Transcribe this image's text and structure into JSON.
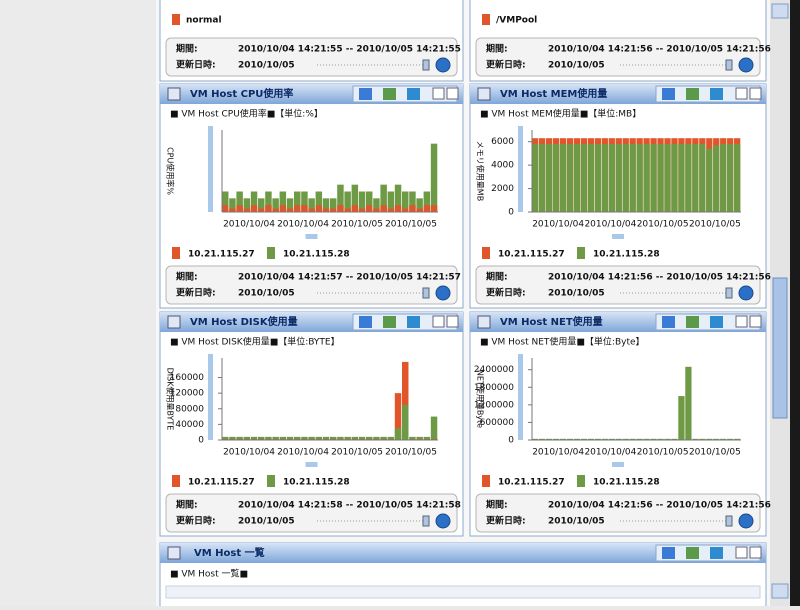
{
  "top_panels": [
    {
      "status": "normal",
      "period_label": "期間:",
      "period": "2010/10/04 14:21:55 -- 2010/10/05 14:21:55",
      "updated_label": "更新日時:",
      "updated": "2010/10/05"
    },
    {
      "status": "/VMPool",
      "period_label": "期間:",
      "period": "2010/10/04 14:21:56 -- 2010/10/05 14:21:56",
      "updated_label": "更新日時:",
      "updated": "2010/10/05"
    }
  ],
  "chart_panels": [
    {
      "title": "VM Host CPU使用率",
      "subtitle": "■ VM Host CPU使用率■【単位:%】",
      "chart": {
        "type": "area",
        "y_label": "CPU使用率%",
        "ylim": [
          0,
          12
        ],
        "x_labels": [
          "2010/10/04",
          "2010/10/04",
          "2010/10/05",
          "2010/10/05"
        ],
        "series": [
          {
            "name": "10.21.115.27",
            "color": "#e0552a",
            "values": [
              1,
              0.5,
              1,
              0.5,
              1,
              0.5,
              1,
              0.5,
              1,
              0.5,
              1,
              1,
              0.5,
              1,
              0.5,
              0.5,
              1,
              0.5,
              1,
              0.5,
              1,
              0.5,
              1,
              0.5,
              1,
              0.5,
              1,
              0.5,
              1,
              1
            ]
          },
          {
            "name": "10.21.115.28",
            "color": "#6f9a45",
            "values": [
              3,
              2,
              3,
              2,
              3,
              2,
              3,
              2,
              3,
              2,
              3,
              3,
              2,
              3,
              2,
              2,
              4,
              3,
              4,
              3,
              3,
              2,
              4,
              3,
              4,
              3,
              3,
              2,
              3,
              10
            ]
          }
        ]
      },
      "period_label": "期間:",
      "period": "2010/10/04 14:21:57 -- 2010/10/05 14:21:57",
      "updated_label": "更新日時:",
      "updated": "2010/10/05"
    },
    {
      "title": "VM Host MEM使用量",
      "subtitle": "■ VM Host MEM使用量■【単位:MB】",
      "chart": {
        "type": "area",
        "y_label": "メモリ使用量MB",
        "ylim": [
          0,
          7000
        ],
        "yticks": [
          0,
          2000,
          4000,
          6000
        ],
        "x_labels": [
          "2010/10/04",
          "2010/10/04",
          "2010/10/05",
          "2010/10/05"
        ],
        "series": [
          {
            "name": "10.21.115.27",
            "color": "#e0552a",
            "values": [
              6300,
              6300,
              6300,
              6300,
              6300,
              6300,
              6300,
              6300,
              6300,
              6300,
              6300,
              6300,
              6300,
              6300,
              6300,
              6300,
              6300,
              6300,
              6300,
              6300,
              6300,
              6300,
              6300,
              6300,
              6300,
              6300,
              6300,
              6300,
              6300,
              6300
            ]
          },
          {
            "name": "10.21.115.28",
            "color": "#6f9a45",
            "values": [
              5800,
              5800,
              5800,
              5800,
              5800,
              5800,
              5800,
              5800,
              5800,
              5800,
              5800,
              5800,
              5800,
              5800,
              5800,
              5800,
              5800,
              5800,
              5800,
              5800,
              5800,
              5800,
              5800,
              5800,
              5800,
              5400,
              5700,
              5800,
              5800,
              5800
            ]
          }
        ]
      },
      "period_label": "期間:",
      "period": "2010/10/04 14:21:56 -- 2010/10/05 14:21:56",
      "updated_label": "更新日時:",
      "updated": "2010/10/05"
    },
    {
      "title": "VM Host DISK使用量",
      "subtitle": "■ VM Host DISK使用量■【単位:BYTE】",
      "chart": {
        "type": "area",
        "y_label": "DISK使用量BYTE",
        "ylim": [
          0,
          210000
        ],
        "yticks": [
          0,
          40000,
          80000,
          120000,
          160000
        ],
        "x_labels": [
          "2010/10/04",
          "2010/10/04",
          "2010/10/05",
          "2010/10/05"
        ],
        "series": [
          {
            "name": "10.21.115.27",
            "color": "#e0552a",
            "values": [
              2000,
              2000,
              2000,
              2000,
              2000,
              2000,
              2000,
              2000,
              2000,
              2000,
              2000,
              2000,
              2000,
              2000,
              2000,
              2000,
              2000,
              2000,
              2000,
              2000,
              2000,
              2000,
              2000,
              2000,
              120000,
              200000,
              2000,
              2000,
              2000,
              2000
            ]
          },
          {
            "name": "10.21.115.28",
            "color": "#6f9a45",
            "values": [
              8000,
              8000,
              8000,
              8000,
              8000,
              8000,
              8000,
              8000,
              8000,
              8000,
              8000,
              8000,
              8000,
              8000,
              8000,
              8000,
              8000,
              8000,
              8000,
              8000,
              8000,
              8000,
              8000,
              8000,
              30000,
              90000,
              8000,
              8000,
              8000,
              60000
            ]
          }
        ]
      },
      "period_label": "期間:",
      "period": "2010/10/04 14:21:58 -- 2010/10/05 14:21:58",
      "updated_label": "更新日時:",
      "updated": "2010/10/05"
    },
    {
      "title": "VM Host NET使用量",
      "subtitle": "■ VM Host NET使用量■【単位:Byte】",
      "chart": {
        "type": "area",
        "y_label": "NET使用量Byte",
        "ylim": [
          0,
          2800000
        ],
        "yticks": [
          0,
          600000,
          1200000,
          1800000,
          2400000
        ],
        "x_labels": [
          "2010/10/04",
          "2010/10/04",
          "2010/10/05",
          "2010/10/05"
        ],
        "series": [
          {
            "name": "10.21.115.27",
            "color": "#e0552a",
            "values": [
              0,
              0,
              0,
              0,
              0,
              0,
              0,
              0,
              0,
              0,
              0,
              0,
              0,
              0,
              0,
              0,
              0,
              0,
              0,
              0,
              0,
              0,
              0,
              0,
              0,
              0,
              0,
              0,
              0,
              0
            ]
          },
          {
            "name": "10.21.115.28",
            "color": "#6f9a45",
            "values": [
              40000,
              40000,
              40000,
              40000,
              40000,
              40000,
              40000,
              40000,
              40000,
              40000,
              40000,
              40000,
              40000,
              40000,
              40000,
              40000,
              40000,
              40000,
              40000,
              40000,
              40000,
              1500000,
              2500000,
              40000,
              40000,
              40000,
              40000,
              40000,
              40000,
              40000
            ]
          }
        ]
      },
      "period_label": "期間:",
      "period": "2010/10/04 14:21:56 -- 2010/10/05 14:21:56",
      "updated_label": "更新日時:",
      "updated": "2010/10/05"
    }
  ],
  "list_panel": {
    "title": "VM Host 一覧",
    "subtitle": "■ VM Host 一覧■"
  }
}
